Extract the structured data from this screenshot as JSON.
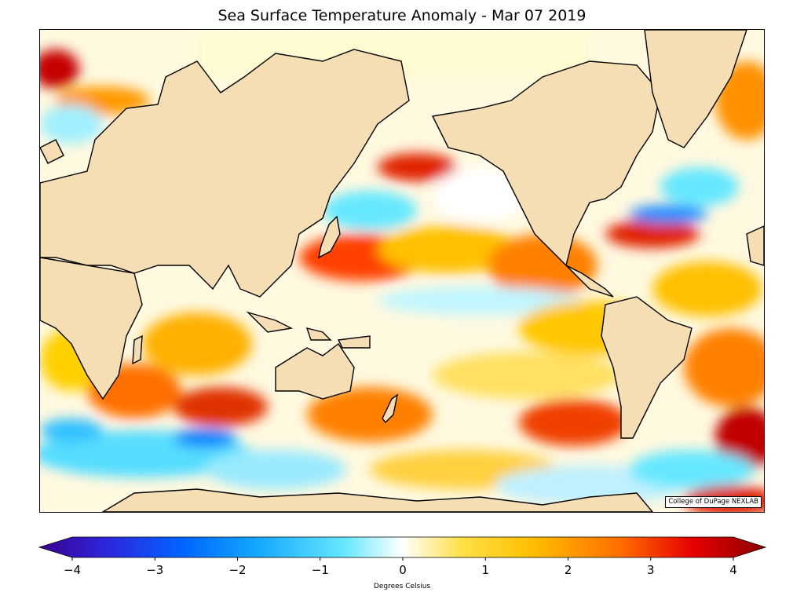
{
  "title": "Sea Surface Temperature Anomaly - Mar 07 2019",
  "credit": "College of DuPage NEXLAB",
  "colorbar": {
    "label": "Degrees Celsius",
    "min": -4,
    "max": 4,
    "ticks": [
      "−4",
      "−3",
      "−2",
      "−1",
      "0",
      "1",
      "2",
      "3",
      "4"
    ],
    "colors": [
      "#3b0090",
      "#2a2ae0",
      "#0066ff",
      "#14a8ff",
      "#66e8ff",
      "#ffffff",
      "#ffe14a",
      "#ffbe00",
      "#ff6d00",
      "#e60000",
      "#8b0000"
    ]
  },
  "land_color": "#f5deb3",
  "map": {
    "anomalies": [
      {
        "kind": "warm",
        "strength": 3,
        "label": "north-pacific-warm-band"
      },
      {
        "kind": "warm",
        "strength": 2,
        "label": "kuroshio-warm-band"
      },
      {
        "kind": "warm",
        "strength": 3,
        "label": "south-pacific-warm-patch"
      },
      {
        "kind": "cool",
        "strength": -2,
        "label": "southern-ocean-cool-band"
      },
      {
        "kind": "warm",
        "strength": 3,
        "label": "south-atlantic-warm-patch"
      },
      {
        "kind": "warm",
        "strength": 3,
        "label": "gulf-stream-warm-band"
      },
      {
        "kind": "cool",
        "strength": -2,
        "label": "labrador-cool-patch"
      },
      {
        "kind": "warm",
        "strength": 4,
        "label": "barents-warm-patch"
      }
    ]
  }
}
